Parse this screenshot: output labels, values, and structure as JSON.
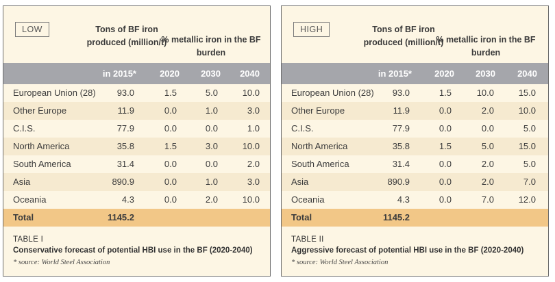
{
  "colors": {
    "panel_bg": "#fdf6e4",
    "alt_row": "#f6ead0",
    "total_row": "#f2c787",
    "header_band": "#a5a6ab",
    "border": "#6b6b6b"
  },
  "headers": {
    "tons": "Tons of BF iron produced (million/t)",
    "pct": "% metallic iron in the BF burden",
    "col_2015": "in 2015*",
    "col_2020": "2020",
    "col_2030": "2030",
    "col_2040": "2040"
  },
  "tables": [
    {
      "scenario": "LOW",
      "rows": [
        {
          "region": "European Union (28)",
          "tons": "93.0",
          "y2020": "1.5",
          "y2030": "5.0",
          "y2040": "10.0"
        },
        {
          "region": "Other Europe",
          "tons": "11.9",
          "y2020": "0.0",
          "y2030": "1.0",
          "y2040": "3.0"
        },
        {
          "region": "C.I.S.",
          "tons": "77.9",
          "y2020": "0.0",
          "y2030": "0.0",
          "y2040": "1.0"
        },
        {
          "region": "North America",
          "tons": "35.8",
          "y2020": "1.5",
          "y2030": "3.0",
          "y2040": "10.0"
        },
        {
          "region": "South America",
          "tons": "31.4",
          "y2020": "0.0",
          "y2030": "0.0",
          "y2040": "2.0"
        },
        {
          "region": "Asia",
          "tons": "890.9",
          "y2020": "0.0",
          "y2030": "1.0",
          "y2040": "3.0"
        },
        {
          "region": "Oceania",
          "tons": "4.3",
          "y2020": "0.0",
          "y2030": "2.0",
          "y2040": "10.0"
        }
      ],
      "total": {
        "label": "Total",
        "tons": "1145.2"
      },
      "caption": {
        "number": "TABLE I",
        "title": "Conservative forecast of potential HBI use in the BF (2020-2040)",
        "source": "* source: World Steel Association"
      }
    },
    {
      "scenario": "HIGH",
      "rows": [
        {
          "region": "European Union (28)",
          "tons": "93.0",
          "y2020": "1.5",
          "y2030": "10.0",
          "y2040": "15.0"
        },
        {
          "region": "Other Europe",
          "tons": "11.9",
          "y2020": "0.0",
          "y2030": "2.0",
          "y2040": "10.0"
        },
        {
          "region": "C.I.S.",
          "tons": "77.9",
          "y2020": "0.0",
          "y2030": "0.0",
          "y2040": "5.0"
        },
        {
          "region": "North America",
          "tons": "35.8",
          "y2020": "1.5",
          "y2030": "5.0",
          "y2040": "15.0"
        },
        {
          "region": "South America",
          "tons": "31.4",
          "y2020": "0.0",
          "y2030": "2.0",
          "y2040": "5.0"
        },
        {
          "region": "Asia",
          "tons": "890.9",
          "y2020": "0.0",
          "y2030": "2.0",
          "y2040": "7.0"
        },
        {
          "region": "Oceania",
          "tons": "4.3",
          "y2020": "0.0",
          "y2030": "7.0",
          "y2040": "12.0"
        }
      ],
      "total": {
        "label": "Total",
        "tons": "1145.2"
      },
      "caption": {
        "number": "TABLE II",
        "title": "Aggressive forecast of potential HBI use in the BF (2020-2040)",
        "source": "* source: World Steel Association"
      }
    }
  ]
}
